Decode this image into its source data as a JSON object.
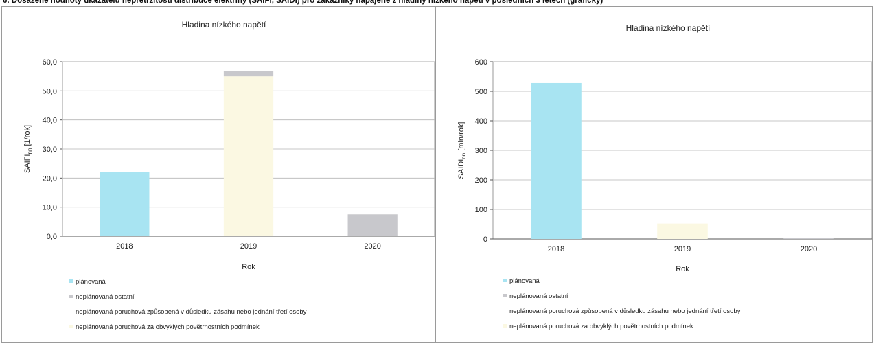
{
  "heading": "6. Dosažené hodnoty ukazatelů nepřetržitosti distribuce elektřiny (SAIFI, SAIDI) pro zákazníky napájené z hladiny nízkého napětí v posledních 3 letech (graficky)",
  "colors": {
    "planned": "#a8e4f2",
    "unplanned_other": "#c8c8cc",
    "third_party": "#ffffff",
    "weather": "#fbf8e2"
  },
  "chart_data": [
    {
      "id": "saifi",
      "type": "bar",
      "stacked": true,
      "title": "Hladina nízkého napětí",
      "xlabel": "Rok",
      "ylabel_main": "SAIFI",
      "ylabel_sub": "nn",
      "ylabel_unit": " [1/rok]",
      "categories": [
        "2018",
        "2019",
        "2020"
      ],
      "ylim": [
        0,
        60
      ],
      "yticks": [
        0,
        10,
        20,
        30,
        40,
        50,
        60
      ],
      "ytick_labels": [
        "0,0",
        "10,0",
        "20,0",
        "30,0",
        "40,0",
        "50,0",
        "60,0"
      ],
      "grid": true,
      "legend_position": "bottom",
      "series": [
        {
          "name": "plánovaná",
          "color_key": "planned",
          "values": [
            22.0,
            0,
            0
          ]
        },
        {
          "name": "neplánovaná ostatní",
          "color_key": "unplanned_other",
          "values": [
            0,
            1.8,
            7.5
          ]
        },
        {
          "name": "neplánovaná poruchová způsobená v důsledku zásahu nebo jednání třetí osoby",
          "color_key": "third_party",
          "values": [
            0,
            0,
            0
          ]
        },
        {
          "name": "neplánovaná poruchová za obvyklých povětrnostních podmínek",
          "color_key": "weather",
          "values": [
            0,
            55.0,
            0
          ]
        }
      ],
      "stack_order": [
        0,
        3,
        2,
        1
      ]
    },
    {
      "id": "saidi",
      "type": "bar",
      "stacked": true,
      "title": "Hladina nízkého napětí",
      "xlabel": "Rok",
      "ylabel_main": "SAIDI",
      "ylabel_sub": "nn",
      "ylabel_unit": " [min/rok]",
      "categories": [
        "2018",
        "2019",
        "2020"
      ],
      "ylim": [
        0,
        600
      ],
      "yticks": [
        0,
        100,
        200,
        300,
        400,
        500,
        600
      ],
      "ytick_labels": [
        "0",
        "100",
        "200",
        "300",
        "400",
        "500",
        "600"
      ],
      "grid": true,
      "legend_position": "bottom",
      "series": [
        {
          "name": "plánovaná",
          "color_key": "planned",
          "values": [
            528,
            0,
            0
          ]
        },
        {
          "name": "neplánovaná ostatní",
          "color_key": "unplanned_other",
          "values": [
            0,
            0,
            3
          ]
        },
        {
          "name": "neplánovaná poruchová způsobená v důsledku zásahu nebo jednání třetí osoby",
          "color_key": "third_party",
          "values": [
            0,
            0,
            0
          ]
        },
        {
          "name": "neplánovaná poruchová za obvyklých povětrnostních podmínek",
          "color_key": "weather",
          "values": [
            0,
            52,
            0
          ]
        }
      ],
      "stack_order": [
        0,
        3,
        2,
        1
      ]
    }
  ]
}
